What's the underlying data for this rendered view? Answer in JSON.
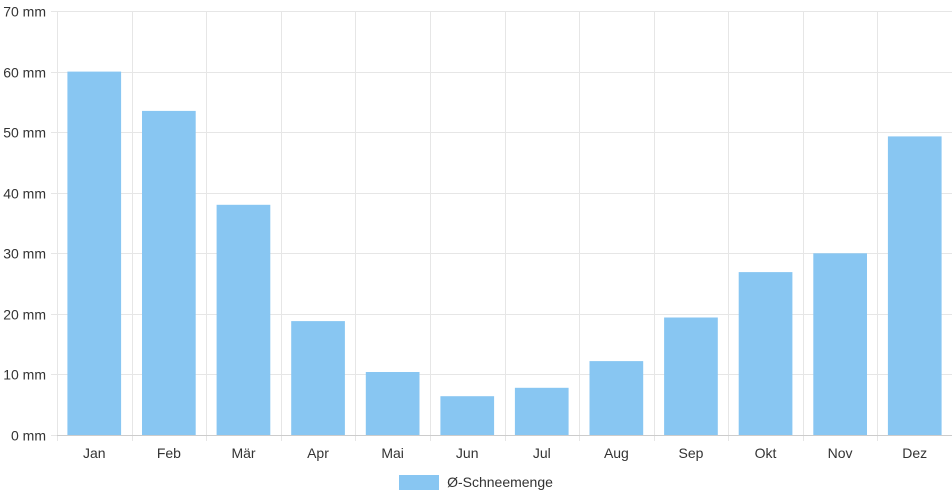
{
  "chart_data": {
    "type": "bar",
    "categories": [
      "Jan",
      "Feb",
      "Mär",
      "Apr",
      "Mai",
      "Jun",
      "Jul",
      "Aug",
      "Sep",
      "Okt",
      "Nov",
      "Dez"
    ],
    "series": [
      {
        "name": "Ø-Schneemenge",
        "values": [
          60,
          53.5,
          38,
          18.8,
          10.4,
          6.4,
          7.8,
          12.2,
          19.4,
          26.9,
          30,
          49.3
        ]
      }
    ],
    "title": "",
    "xlabel": "",
    "ylabel": "",
    "ylim": [
      0,
      70
    ],
    "yticks": [
      0,
      10,
      20,
      30,
      40,
      50,
      60,
      70
    ],
    "y_unit_suffix": " mm",
    "grid": true,
    "legend_position": "bottom-center",
    "colors": {
      "bar": "#88c6f2",
      "grid": "#e6e6e6",
      "axis": "#cccccc"
    }
  }
}
